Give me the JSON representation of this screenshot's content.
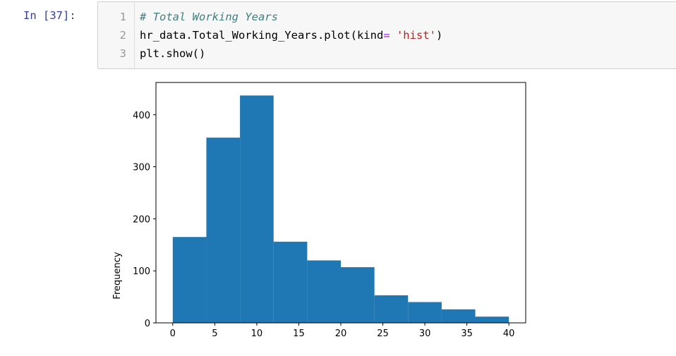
{
  "cell": {
    "prompt": "In [37]:",
    "line_numbers": [
      "1",
      "2",
      "3"
    ],
    "code": {
      "line1_comment": "# Total Working Years",
      "line2_part1": "hr_data.Total_Working_Years.plot(kind",
      "line2_op": "=",
      "line2_space": " ",
      "line2_string": "'hist'",
      "line2_end": ")",
      "line3": "plt.show()"
    }
  },
  "chart_data": {
    "type": "bar",
    "ylabel": "Frequency",
    "xlim": [
      -2,
      42
    ],
    "ylim": [
      0,
      462
    ],
    "bin_edges": [
      0,
      4,
      8,
      12,
      16,
      20,
      24,
      28,
      32,
      36,
      40
    ],
    "values": [
      165,
      356,
      437,
      156,
      120,
      107,
      53,
      40,
      26,
      12
    ],
    "xticks": [
      0,
      5,
      10,
      15,
      20,
      25,
      30,
      35,
      40
    ],
    "yticks": [
      0,
      100,
      200,
      300,
      400
    ],
    "bar_color": "#1f77b4"
  }
}
